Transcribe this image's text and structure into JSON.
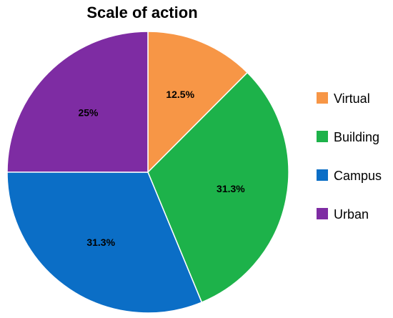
{
  "chart_data": {
    "type": "pie",
    "title": "Scale of action",
    "categories": [
      "Virtual",
      "Building",
      "Campus",
      "Urban"
    ],
    "values": [
      12.5,
      31.3,
      31.3,
      25
    ],
    "labels": [
      "12.5%",
      "31.3%",
      "31.3%",
      "25%"
    ],
    "colors": [
      "#F79646",
      "#1DB24A",
      "#0B6EC6",
      "#7E2CA3"
    ],
    "start_angle": "12 o'clock",
    "direction": "clockwise",
    "legend_position": "right"
  }
}
